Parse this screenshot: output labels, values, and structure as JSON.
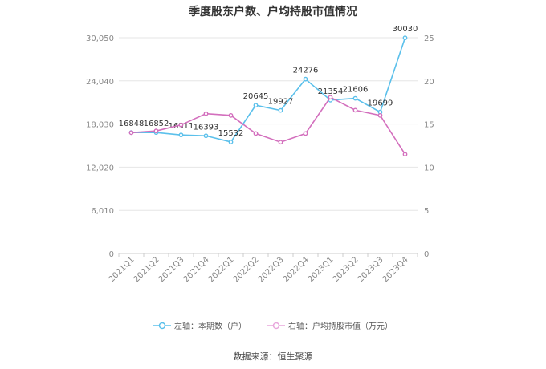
{
  "title": "季度股东户数、户均持股市值情况",
  "source": "数据来源：恒生聚源",
  "chart_data": {
    "type": "line",
    "categories": [
      "2021Q1",
      "2021Q2",
      "2021Q3",
      "2021Q4",
      "2022Q1",
      "2022Q2",
      "2022Q3",
      "2022Q4",
      "2023Q1",
      "2023Q2",
      "2023Q3",
      "2023Q4"
    ],
    "y_left": {
      "ylim": [
        0,
        30050
      ],
      "ticks": [
        0,
        6010,
        12020,
        18030,
        24040,
        30050
      ],
      "tick_labels": [
        "0",
        "6,010",
        "12,020",
        "18,030",
        "24,040",
        "30,050"
      ]
    },
    "y_right": {
      "ylim": [
        0,
        25
      ],
      "ticks": [
        0,
        5,
        10,
        15,
        20,
        25
      ],
      "tick_labels": [
        "0",
        "5",
        "10",
        "15",
        "20",
        "25"
      ]
    },
    "series": [
      {
        "name": "左轴：本期数（户）",
        "axis": "left",
        "color": "#5bc0eb",
        "values": [
          16848,
          16852,
          16511,
          16393,
          15532,
          20645,
          19927,
          24276,
          21354,
          21606,
          19699,
          30030
        ],
        "labels": [
          "16848",
          "16852",
          "16511",
          "16393",
          "15532",
          "20645",
          "19927",
          "24276",
          "21354",
          "21606",
          "19699",
          "30030"
        ]
      },
      {
        "name": "右轴：户均持股市值（万元）",
        "axis": "right",
        "color": "#d36fbd",
        "values": [
          14.0,
          14.2,
          14.9,
          16.2,
          16.0,
          13.9,
          12.9,
          13.9,
          18.1,
          16.6,
          16.0,
          11.5
        ]
      }
    ],
    "grid": true,
    "legend_position": "bottom"
  }
}
